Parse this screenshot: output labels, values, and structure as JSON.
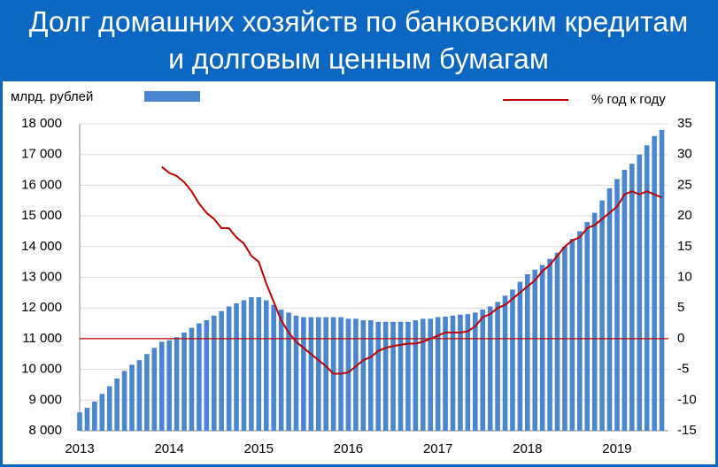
{
  "chart_data": {
    "type": "bar_line",
    "title": "Долг домашних хозяйств по банковским кредитам",
    "subtitle": "и долговым ценным бумагам",
    "y_label": "млрд. рублей",
    "categories": [
      "2013",
      null,
      null,
      null,
      null,
      null,
      null,
      null,
      null,
      null,
      null,
      null,
      "2014",
      null,
      null,
      null,
      null,
      null,
      null,
      null,
      null,
      null,
      null,
      null,
      "2015",
      null,
      null,
      null,
      null,
      null,
      null,
      null,
      null,
      null,
      null,
      null,
      "2016",
      null,
      null,
      null,
      null,
      null,
      null,
      null,
      null,
      null,
      null,
      null,
      "2017",
      null,
      null,
      null,
      null,
      null,
      null,
      null,
      null,
      null,
      null,
      null,
      "2018",
      null,
      null,
      null,
      null,
      null,
      null,
      null,
      null,
      null,
      null,
      null,
      "2019",
      null,
      null,
      null,
      null,
      null,
      null
    ],
    "series": [
      {
        "name": null,
        "type": "bar",
        "color": "#4a86d0",
        "values": [
          8600,
          8750,
          8950,
          9200,
          9450,
          9700,
          9950,
          10150,
          10300,
          10500,
          10700,
          10900,
          10950,
          11050,
          11200,
          11350,
          11500,
          11600,
          11750,
          11900,
          12050,
          12150,
          12250,
          12350,
          12350,
          12250,
          12100,
          11950,
          11850,
          11750,
          11700,
          11700,
          11700,
          11700,
          11700,
          11700,
          11650,
          11650,
          11600,
          11600,
          11550,
          11550,
          11550,
          11550,
          11550,
          11600,
          11650,
          11650,
          11700,
          11720,
          11750,
          11780,
          11800,
          11850,
          11950,
          12050,
          12200,
          12400,
          12600,
          12850,
          13100,
          13250,
          13400,
          13600,
          13800,
          14000,
          14250,
          14500,
          14800,
          15100,
          15500,
          15900,
          16200,
          16500,
          16700,
          17000,
          17300,
          17600,
          17800
        ]
      },
      {
        "name": "%  год к году",
        "type": "line",
        "axis": "y2",
        "color": "#c00000",
        "values": [
          null,
          null,
          null,
          null,
          null,
          null,
          null,
          null,
          null,
          null,
          null,
          28,
          27,
          26.5,
          25.5,
          24,
          22,
          20.5,
          19.5,
          18,
          18,
          16.5,
          15.5,
          13.5,
          12.5,
          9,
          6,
          3,
          1,
          -0.5,
          -1.5,
          -2.5,
          -3.5,
          -4.5,
          -5.7,
          -5.7,
          -5.5,
          -4.5,
          -3.5,
          -3,
          -2,
          -1.5,
          -1.2,
          -1,
          -0.8,
          -0.8,
          -0.5,
          0,
          0.5,
          1,
          1,
          1,
          1.2,
          2,
          3.5,
          4,
          5,
          5.5,
          6.5,
          7.5,
          8.5,
          9.5,
          11,
          12,
          13.5,
          15,
          16,
          16.5,
          18,
          18.5,
          19.5,
          20.5,
          21.5,
          23.5,
          24,
          23.5,
          24,
          23.5,
          23
        ]
      }
    ],
    "ylim": [
      8000,
      18000
    ],
    "yticks": [
      {
        "value": 8000,
        "label": "8 000"
      },
      {
        "value": 9000,
        "label": "9 000"
      },
      {
        "value": 10000,
        "label": "10 000"
      },
      {
        "value": 11000,
        "label": "11 000"
      },
      {
        "value": 12000,
        "label": "12 000"
      },
      {
        "value": 13000,
        "label": "13 000"
      },
      {
        "value": 14000,
        "label": "14 000"
      },
      {
        "value": 15000,
        "label": "15 000"
      },
      {
        "value": 16000,
        "label": "16 000"
      },
      {
        "value": 17000,
        "label": "17 000"
      },
      {
        "value": 18000,
        "label": "18 000"
      }
    ],
    "y2lim": [
      -15,
      35
    ],
    "y2ticks": [
      -15,
      -10,
      -5,
      0,
      5,
      10,
      15,
      20,
      25,
      30,
      35
    ],
    "hline_y2": 0,
    "grid": true
  }
}
